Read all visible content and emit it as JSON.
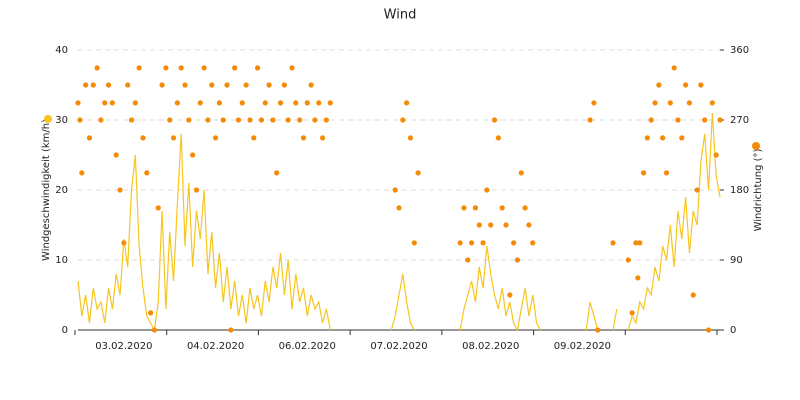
{
  "chart_data": {
    "type": "line-scatter",
    "title": "Wind",
    "ylabel": "Windgeschwindigkeit (km/h)",
    "y2label": "Windrichtung (°)",
    "categories": [
      "03.02.2020",
      "04.02.2020",
      "06.02.2020",
      "07.02.2020",
      "08.02.2020",
      "09.02.2020",
      null
    ],
    "xlim": [
      0,
      168
    ],
    "ylim": [
      0,
      40
    ],
    "yticks": [
      0,
      10,
      20,
      30,
      40
    ],
    "y2lim": [
      0,
      360
    ],
    "y2ticks": [
      0,
      90,
      180,
      270,
      360
    ],
    "grid": true,
    "series": [
      {
        "type": "line",
        "color": "#f7c51e",
        "x": [
          0,
          1,
          2,
          3,
          4,
          5,
          6,
          7,
          8,
          9,
          10,
          11,
          12,
          13,
          14,
          15,
          16,
          17,
          18,
          19,
          20,
          21,
          22,
          23,
          24,
          25,
          26,
          27,
          28,
          29,
          30,
          31,
          32,
          33,
          34,
          35,
          36,
          37,
          38,
          39,
          40,
          41,
          42,
          43,
          44,
          45,
          46,
          47,
          48,
          49,
          50,
          51,
          52,
          53,
          54,
          55,
          56,
          57,
          58,
          59,
          60,
          61,
          62,
          63,
          64,
          65,
          66,
          67,
          82,
          83,
          84,
          85,
          86,
          87,
          88,
          89,
          100,
          101,
          102,
          103,
          104,
          105,
          106,
          107,
          108,
          109,
          110,
          111,
          112,
          113,
          114,
          115,
          116,
          117,
          118,
          119,
          120,
          121,
          122,
          133,
          134,
          135,
          136,
          137,
          140,
          141,
          142,
          144,
          145,
          146,
          147,
          148,
          149,
          150,
          151,
          152,
          153,
          154,
          155,
          156,
          157,
          158,
          159,
          160,
          161,
          162,
          163,
          164,
          165,
          166,
          167,
          168
        ],
        "values": [
          7,
          2,
          5,
          1,
          6,
          3,
          4,
          1,
          6,
          3,
          8,
          5,
          13,
          9,
          20,
          25,
          12,
          6,
          2,
          1,
          0,
          4,
          17,
          3,
          14,
          7,
          18,
          28,
          12,
          21,
          9,
          17,
          13,
          20,
          8,
          14,
          6,
          11,
          4,
          9,
          3,
          7,
          2,
          5,
          1,
          6,
          3,
          5,
          2,
          7,
          4,
          9,
          6,
          11,
          5,
          10,
          3,
          8,
          4,
          6,
          2,
          5,
          3,
          4,
          1,
          3,
          0,
          null,
          0,
          2,
          5,
          8,
          4,
          1,
          0,
          null,
          0,
          3,
          5,
          7,
          4,
          9,
          6,
          12,
          8,
          5,
          3,
          6,
          2,
          4,
          1,
          0,
          3,
          6,
          2,
          5,
          1,
          0,
          null,
          0,
          4,
          2,
          0,
          null,
          0,
          3,
          null,
          0,
          2,
          1,
          4,
          3,
          6,
          5,
          9,
          7,
          12,
          10,
          15,
          9,
          17,
          13,
          19,
          11,
          17,
          15,
          24,
          28,
          20,
          31,
          22,
          19
        ]
      },
      {
        "type": "scatter",
        "axis": "y2",
        "color": "#f58a07",
        "x": [
          0,
          0.5,
          1,
          2,
          3,
          4,
          5,
          6,
          7,
          8,
          9,
          10,
          11,
          12,
          13,
          14,
          15,
          16,
          17,
          18,
          19,
          20,
          21,
          22,
          23,
          24,
          25,
          26,
          27,
          28,
          29,
          30,
          31,
          32,
          33,
          34,
          35,
          36,
          37,
          38,
          39,
          40,
          41,
          42,
          43,
          44,
          45,
          46,
          47,
          48,
          49,
          50,
          51,
          52,
          53,
          54,
          55,
          56,
          57,
          58,
          59,
          60,
          61,
          62,
          63,
          64,
          65,
          66,
          83,
          84,
          85,
          86,
          87,
          88,
          89,
          100,
          101,
          102,
          103,
          104,
          105,
          106,
          107,
          108,
          109,
          110,
          111,
          112,
          113,
          114,
          115,
          116,
          117,
          118,
          119,
          134,
          135,
          136,
          140,
          146,
          144,
          145,
          146.5,
          147,
          148,
          149,
          150,
          151,
          152,
          153,
          154,
          155,
          156,
          157,
          158,
          159,
          160,
          161,
          162,
          163,
          164,
          165,
          166,
          167,
          168
        ],
        "values": [
          292,
          270,
          202,
          315,
          247,
          315,
          337,
          270,
          292,
          315,
          292,
          225,
          180,
          112,
          315,
          270,
          292,
          337,
          247,
          202,
          22,
          0,
          157,
          315,
          337,
          270,
          247,
          292,
          337,
          315,
          270,
          225,
          180,
          292,
          337,
          270,
          315,
          247,
          292,
          270,
          315,
          0,
          337,
          270,
          292,
          315,
          270,
          247,
          337,
          270,
          292,
          315,
          270,
          202,
          292,
          315,
          270,
          337,
          292,
          270,
          247,
          292,
          315,
          270,
          292,
          247,
          270,
          292,
          180,
          157,
          270,
          292,
          247,
          112,
          202,
          112,
          157,
          90,
          112,
          157,
          135,
          112,
          180,
          135,
          270,
          247,
          157,
          135,
          45,
          112,
          90,
          202,
          157,
          135,
          112,
          270,
          292,
          0,
          112,
          112,
          90,
          22,
          67,
          112,
          202,
          247,
          270,
          292,
          315,
          247,
          202,
          292,
          337,
          270,
          247,
          315,
          292,
          45,
          180,
          315,
          270,
          0,
          292,
          225,
          270
        ]
      }
    ]
  }
}
